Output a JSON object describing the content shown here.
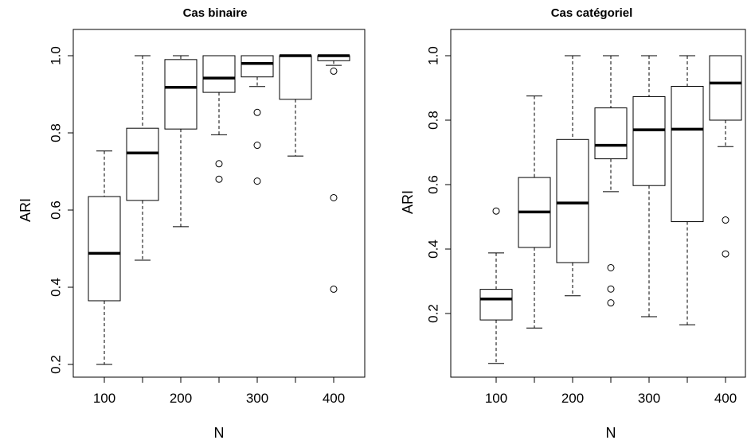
{
  "chart_data": [
    {
      "type": "boxplot",
      "title": "Cas binaire",
      "xlabel": "N",
      "ylabel": "ARI",
      "categories": [
        "100",
        "150",
        "200",
        "250",
        "300",
        "350",
        "400"
      ],
      "x_tick_labels": [
        "100",
        "200",
        "300",
        "400"
      ],
      "y_tick_labels": [
        "0.2",
        "0.4",
        "0.6",
        "0.8",
        "1.0"
      ],
      "ylim": [
        0.19,
        1.03
      ],
      "boxes": [
        {
          "category": "100",
          "whisker_low": 0.2,
          "q1": 0.365,
          "median": 0.488,
          "q3": 0.635,
          "whisker_high": 0.753,
          "outliers": []
        },
        {
          "category": "150",
          "whisker_low": 0.47,
          "q1": 0.625,
          "median": 0.748,
          "q3": 0.812,
          "whisker_high": 1.0,
          "outliers": []
        },
        {
          "category": "200",
          "whisker_low": 0.557,
          "q1": 0.81,
          "median": 0.918,
          "q3": 0.99,
          "whisker_high": 1.0,
          "outliers": []
        },
        {
          "category": "250",
          "whisker_low": 0.795,
          "q1": 0.905,
          "median": 0.942,
          "q3": 1.0,
          "whisker_high": 1.0,
          "outliers": [
            0.72,
            0.68
          ]
        },
        {
          "category": "300",
          "whisker_low": 0.92,
          "q1": 0.945,
          "median": 0.98,
          "q3": 1.0,
          "whisker_high": 1.0,
          "outliers": [
            0.853,
            0.768,
            0.675
          ]
        },
        {
          "category": "350",
          "whisker_low": 0.74,
          "q1": 0.887,
          "median": 1.0,
          "q3": 1.0,
          "whisker_high": 1.0,
          "outliers": []
        },
        {
          "category": "400",
          "whisker_low": 0.975,
          "q1": 0.987,
          "median": 1.0,
          "q3": 1.0,
          "whisker_high": 1.0,
          "outliers": [
            0.96,
            0.632,
            0.395
          ]
        }
      ]
    },
    {
      "type": "boxplot",
      "title": "Cas catégoriel",
      "xlabel": "N",
      "ylabel": "ARI",
      "categories": [
        "100",
        "150",
        "200",
        "250",
        "300",
        "350",
        "400"
      ],
      "x_tick_labels": [
        "100",
        "200",
        "300",
        "400"
      ],
      "y_tick_labels": [
        "0.2",
        "0.4",
        "0.6",
        "0.8",
        "1.0"
      ],
      "ylim": [
        0.02,
        1.04
      ],
      "boxes": [
        {
          "category": "100",
          "whisker_low": 0.045,
          "q1": 0.18,
          "median": 0.245,
          "q3": 0.275,
          "whisker_high": 0.388,
          "outliers": [
            0.518
          ]
        },
        {
          "category": "150",
          "whisker_low": 0.155,
          "q1": 0.405,
          "median": 0.515,
          "q3": 0.622,
          "whisker_high": 0.875,
          "outliers": []
        },
        {
          "category": "200",
          "whisker_low": 0.255,
          "q1": 0.358,
          "median": 0.543,
          "q3": 0.74,
          "whisker_high": 1.0,
          "outliers": []
        },
        {
          "category": "250",
          "whisker_low": 0.578,
          "q1": 0.68,
          "median": 0.722,
          "q3": 0.838,
          "whisker_high": 1.0,
          "outliers": [
            0.342,
            0.276,
            0.233
          ]
        },
        {
          "category": "300",
          "whisker_low": 0.19,
          "q1": 0.597,
          "median": 0.77,
          "q3": 0.873,
          "whisker_high": 1.0,
          "outliers": []
        },
        {
          "category": "350",
          "whisker_low": 0.165,
          "q1": 0.485,
          "median": 0.772,
          "q3": 0.905,
          "whisker_high": 1.0,
          "outliers": []
        },
        {
          "category": "400",
          "whisker_low": 0.718,
          "q1": 0.8,
          "median": 0.915,
          "q3": 1.0,
          "whisker_high": 1.0,
          "outliers": [
            0.49,
            0.385
          ]
        }
      ]
    }
  ]
}
